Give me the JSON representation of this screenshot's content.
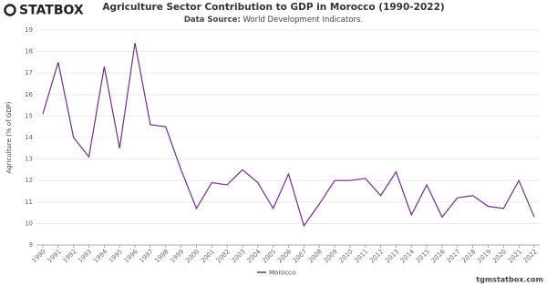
{
  "logo": "STATBOX",
  "footer": "tgmstatbox.com",
  "chart_data": {
    "type": "line",
    "title": "Agriculture Sector Contribution to GDP in Morocco (1990-2022)",
    "subtitle_label": "Data Source:",
    "subtitle": "World Development Indicators.",
    "y_label": "Agriculture (% of GDP)",
    "x": [
      1990,
      1991,
      1992,
      1993,
      1994,
      1995,
      1996,
      1997,
      1998,
      1999,
      2000,
      2001,
      2002,
      2003,
      2004,
      2005,
      2006,
      2007,
      2008,
      2009,
      2010,
      2011,
      2012,
      2013,
      2014,
      2015,
      2016,
      2017,
      2018,
      2019,
      2020,
      2021,
      2022
    ],
    "series": [
      {
        "name": "Morocco",
        "color": "#6f2e86",
        "values": [
          15.1,
          17.5,
          14.0,
          13.1,
          17.3,
          13.5,
          18.4,
          14.6,
          14.5,
          12.5,
          10.7,
          11.9,
          11.8,
          12.5,
          11.9,
          10.7,
          12.3,
          9.9,
          10.9,
          12.0,
          12.0,
          12.1,
          11.3,
          12.4,
          10.4,
          11.8,
          10.3,
          11.2,
          11.3,
          10.8,
          10.7,
          12.0,
          10.3
        ]
      }
    ],
    "xlim": [
      1990,
      2022
    ],
    "xticks": [
      1990,
      1991,
      1992,
      1993,
      1994,
      1995,
      1996,
      1997,
      1998,
      1999,
      2000,
      2001,
      2002,
      2003,
      2004,
      2005,
      2006,
      2007,
      2008,
      2009,
      2010,
      2011,
      2012,
      2013,
      2014,
      2015,
      2016,
      2017,
      2018,
      2019,
      2020,
      2021,
      2022
    ],
    "ylim": [
      9,
      19
    ],
    "yticks": [
      9,
      10,
      11,
      12,
      13,
      14,
      15,
      16,
      17,
      18,
      19
    ],
    "grid": true,
    "legend": "bottom"
  }
}
